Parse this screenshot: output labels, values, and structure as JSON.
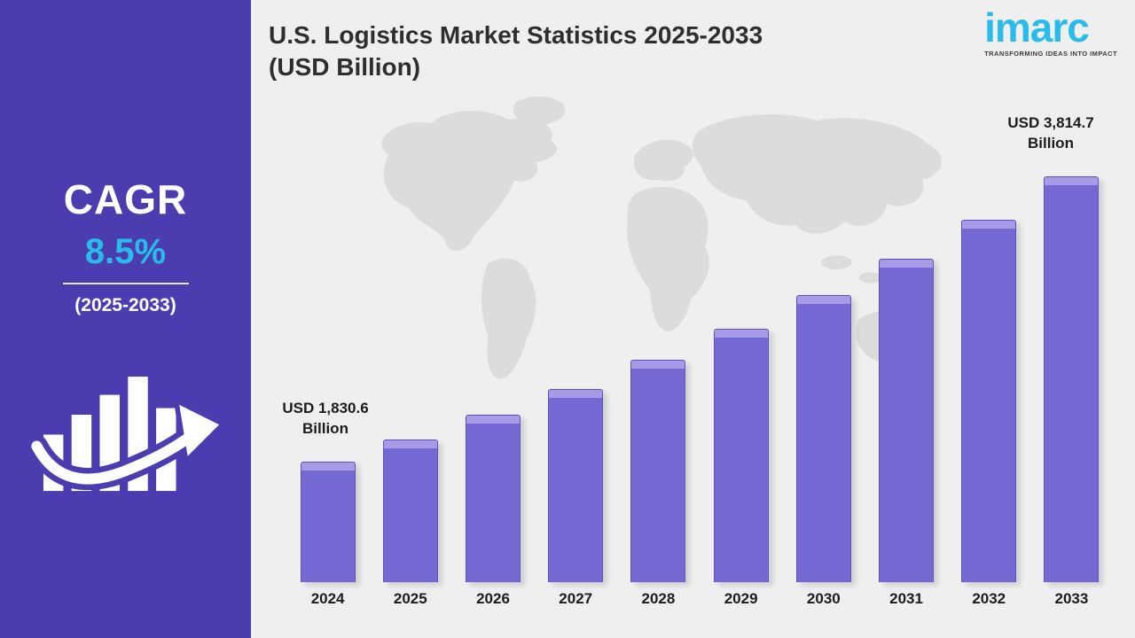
{
  "sidebar": {
    "cagr_label": "CAGR",
    "cagr_value": "8.5%",
    "cagr_period": "(2025-2033)"
  },
  "header": {
    "title_line1": "U.S. Logistics Market Statistics 2025-2033",
    "title_line2": "(USD Billion)"
  },
  "logo": {
    "name": "imarc",
    "tagline": "TRANSFORMING IDEAS INTO IMPACT"
  },
  "chart_data": {
    "type": "bar",
    "title": "U.S. Logistics Market Statistics 2025-2033 (USD Billion)",
    "categories": [
      "2024",
      "2025",
      "2026",
      "2027",
      "2028",
      "2029",
      "2030",
      "2031",
      "2032",
      "2033"
    ],
    "values": [
      1830.6,
      1986.2,
      2155.0,
      2338.2,
      2537.0,
      2752.6,
      2986.6,
      3240.4,
      3515.9,
      3814.7
    ],
    "xlabel": "",
    "ylabel": "USD Billion",
    "ylim": [
      1000,
      3814.7
    ],
    "grid": false,
    "legend": "none",
    "annotations": {
      "start": {
        "line1": "USD 1,830.6",
        "line2": "Billion"
      },
      "end": {
        "line1": "USD 3,814.7",
        "line2": "Billion"
      }
    }
  },
  "colors": {
    "sidebar_bg": "#4B3DB0",
    "accent_cyan": "#2ABCE8",
    "main_bg": "#EFEFEF",
    "map_gray": "#DCDCDC",
    "bar_main": "#7468D2",
    "bar_top": "#A79BE8",
    "bar_border": "#5D51C0",
    "title_color": "#2E2E2E",
    "label_color": "#1C1C1C"
  }
}
